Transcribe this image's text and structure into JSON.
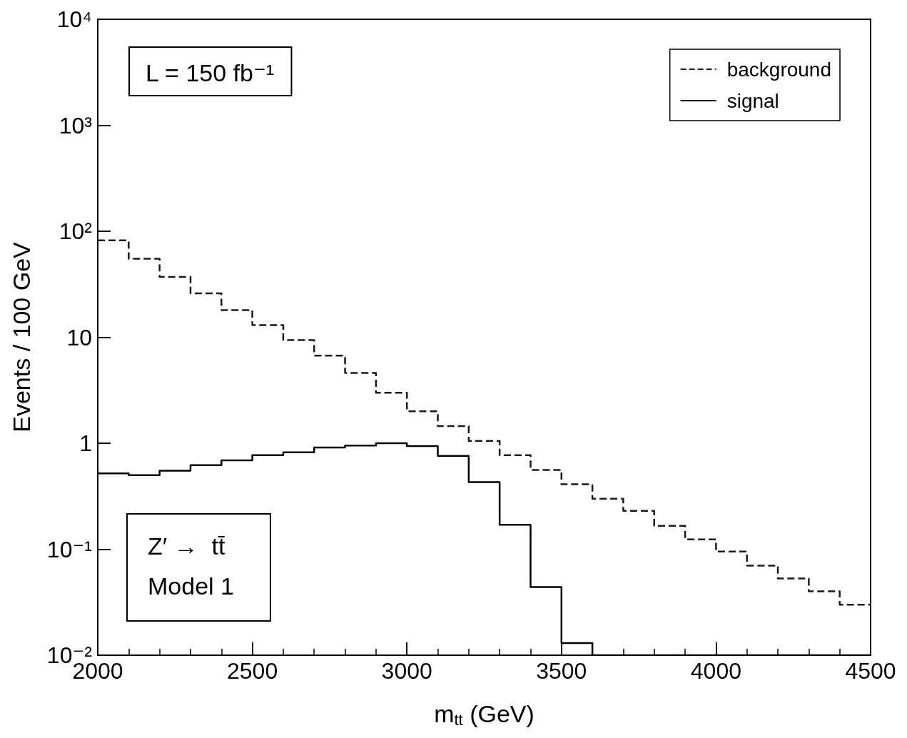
{
  "chart_data": {
    "type": "histogram",
    "xlabel": "m$_{tt}$ (GeV)",
    "ylabel": "Events / 100 GeV",
    "bins": [
      2000,
      2100,
      2200,
      2300,
      2400,
      2500,
      2600,
      2700,
      2800,
      2900,
      3000,
      3100,
      3200,
      3300,
      3400,
      3500,
      3600,
      3700,
      3800,
      3900,
      4000,
      4100,
      4200,
      4300,
      4400,
      4500
    ],
    "series": [
      {
        "name": "background",
        "color": "#1a1a1a",
        "line_style": "dashed",
        "values": [
          82,
          55,
          37,
          26,
          18,
          13,
          9.4,
          6.7,
          4.6,
          3.0,
          2.0,
          1.45,
          1.05,
          0.77,
          0.56,
          0.41,
          0.3,
          0.23,
          0.166,
          0.124,
          0.095,
          0.07,
          0.053,
          0.04,
          0.03
        ]
      },
      {
        "name": "signal",
        "color": "#000000",
        "line_style": "solid",
        "values": [
          0.52,
          0.5,
          0.55,
          0.62,
          0.69,
          0.77,
          0.82,
          0.91,
          0.95,
          1.0,
          0.94,
          0.76,
          0.43,
          0.17,
          0.044,
          0.013,
          null,
          null,
          null,
          null,
          null,
          null,
          null,
          null,
          null
        ]
      }
    ],
    "log": "y",
    "xlim": [
      2000,
      4500
    ],
    "xticks": [
      2000,
      2500,
      3000,
      3500,
      4000,
      4500
    ],
    "ylim": [
      0.01,
      10000
    ],
    "yticks": [
      {
        "value": 0.01,
        "label": "10⁻²"
      },
      {
        "value": 0.1,
        "label": "10⁻¹"
      },
      1,
      10,
      {
        "value": 100,
        "label": "10²"
      },
      {
        "value": 1000,
        "label": "10³"
      },
      {
        "value": 10000,
        "label": "10⁴"
      }
    ],
    "grid": false,
    "legend": "top right",
    "annotations": [
      "L = 150 fb⁻¹",
      "Z′ →  tt̄",
      "Model 1"
    ]
  }
}
